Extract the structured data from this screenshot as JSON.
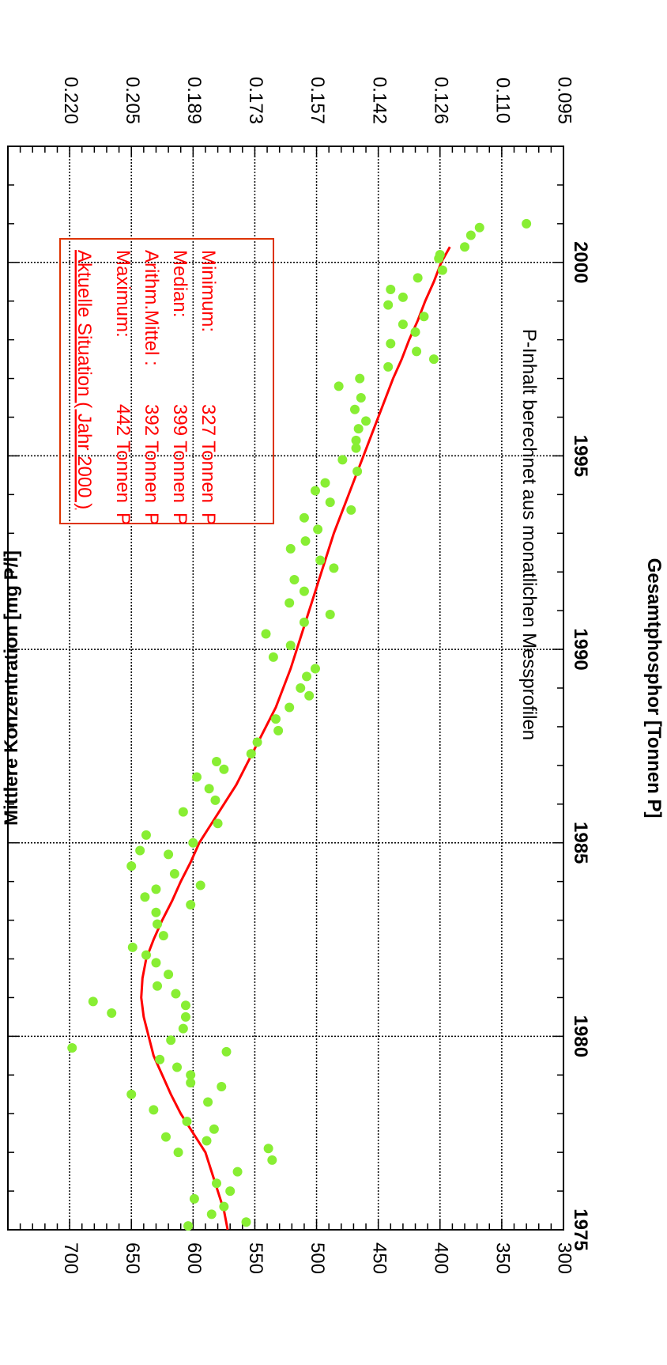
{
  "chart_data": {
    "type": "scatter",
    "xlabel": "",
    "ylabel": "Gesamtphosphor [Tonnen P]",
    "ylabel_right": "Mittlere Konzentration [mg P/l]",
    "annotation": "P-Inhalt berechnet aus monatlichen Messprofilen",
    "x_range": [
      1975,
      2003
    ],
    "y_range": [
      300,
      750
    ],
    "grid": true,
    "x_ticks": [
      "1975",
      "1980",
      "1985",
      "1990",
      "1995",
      "2000"
    ],
    "y_ticks": [
      "300",
      "350",
      "400",
      "450",
      "500",
      "550",
      "600",
      "650",
      "700"
    ],
    "y_right_ticks": [
      "0.095",
      "0.110",
      "0.126",
      "0.142",
      "0.157",
      "0.173",
      "0.189",
      "0.205",
      "0.220"
    ],
    "series": [
      {
        "color": "#88ee33",
        "values": [
          [
            1975.1,
            604
          ],
          [
            1975.2,
            557
          ],
          [
            1975.4,
            585
          ],
          [
            1975.6,
            575
          ],
          [
            1975.8,
            599
          ],
          [
            1976.0,
            570
          ],
          [
            1976.2,
            581
          ],
          [
            1976.5,
            564
          ],
          [
            1976.8,
            536
          ],
          [
            1977.0,
            612
          ],
          [
            1977.1,
            539
          ],
          [
            1977.3,
            589
          ],
          [
            1977.4,
            622
          ],
          [
            1977.6,
            583
          ],
          [
            1977.8,
            605
          ],
          [
            1978.1,
            632
          ],
          [
            1978.3,
            588
          ],
          [
            1978.5,
            650
          ],
          [
            1978.7,
            577
          ],
          [
            1978.8,
            602
          ],
          [
            1979.0,
            602
          ],
          [
            1979.2,
            613
          ],
          [
            1979.4,
            627
          ],
          [
            1979.6,
            573
          ],
          [
            1979.7,
            698
          ],
          [
            1979.9,
            618
          ],
          [
            1980.2,
            608
          ],
          [
            1980.5,
            606
          ],
          [
            1980.6,
            666
          ],
          [
            1980.8,
            606
          ],
          [
            1980.9,
            681
          ],
          [
            1981.1,
            614
          ],
          [
            1981.3,
            629
          ],
          [
            1981.6,
            620
          ],
          [
            1981.9,
            630
          ],
          [
            1982.1,
            638
          ],
          [
            1982.3,
            649
          ],
          [
            1982.6,
            624
          ],
          [
            1982.9,
            629
          ],
          [
            1983.2,
            630
          ],
          [
            1983.4,
            602
          ],
          [
            1983.6,
            639
          ],
          [
            1983.8,
            630
          ],
          [
            1983.9,
            594
          ],
          [
            1984.2,
            615
          ],
          [
            1984.4,
            650
          ],
          [
            1984.7,
            620
          ],
          [
            1984.8,
            643
          ],
          [
            1985.0,
            600
          ],
          [
            1985.2,
            638
          ],
          [
            1985.5,
            580
          ],
          [
            1985.8,
            608
          ],
          [
            1986.1,
            582
          ],
          [
            1986.4,
            587
          ],
          [
            1986.7,
            597
          ],
          [
            1986.9,
            575
          ],
          [
            1987.1,
            581
          ],
          [
            1987.3,
            553
          ],
          [
            1987.6,
            548
          ],
          [
            1987.9,
            531
          ],
          [
            1988.2,
            533
          ],
          [
            1988.5,
            522
          ],
          [
            1988.8,
            506
          ],
          [
            1989.0,
            513
          ],
          [
            1989.3,
            508
          ],
          [
            1989.5,
            501
          ],
          [
            1989.8,
            535
          ],
          [
            1990.1,
            521
          ],
          [
            1990.4,
            541
          ],
          [
            1990.7,
            510
          ],
          [
            1990.9,
            489
          ],
          [
            1991.2,
            522
          ],
          [
            1991.5,
            510
          ],
          [
            1991.8,
            518
          ],
          [
            1992.1,
            486
          ],
          [
            1992.3,
            497
          ],
          [
            1992.6,
            521
          ],
          [
            1992.8,
            509
          ],
          [
            1993.1,
            499
          ],
          [
            1993.4,
            510
          ],
          [
            1993.6,
            472
          ],
          [
            1993.8,
            489
          ],
          [
            1994.1,
            501
          ],
          [
            1994.3,
            493
          ],
          [
            1994.6,
            467
          ],
          [
            1994.9,
            479
          ],
          [
            1995.2,
            468
          ],
          [
            1995.4,
            468
          ],
          [
            1995.7,
            466
          ],
          [
            1995.9,
            460
          ],
          [
            1996.2,
            469
          ],
          [
            1996.5,
            464
          ],
          [
            1996.8,
            482
          ],
          [
            1997.0,
            465
          ],
          [
            1997.3,
            442
          ],
          [
            1997.5,
            405
          ],
          [
            1997.7,
            419
          ],
          [
            1997.9,
            440
          ],
          [
            1998.2,
            420
          ],
          [
            1998.4,
            430
          ],
          [
            1998.6,
            413
          ],
          [
            1998.9,
            442
          ],
          [
            1999.1,
            430
          ],
          [
            1999.3,
            440
          ],
          [
            1999.6,
            418
          ],
          [
            1999.8,
            398
          ],
          [
            2000.1,
            401
          ],
          [
            2000.2,
            400
          ],
          [
            2000.4,
            380
          ],
          [
            2000.7,
            375
          ],
          [
            2000.9,
            368
          ],
          [
            2001.0,
            330
          ]
        ]
      },
      {
        "color": "#ff0000",
        "type": "line",
        "values": [
          [
            1975.0,
            572
          ],
          [
            1975.5,
            575
          ],
          [
            1976.0,
            580
          ],
          [
            1976.5,
            585
          ],
          [
            1977.0,
            590
          ],
          [
            1977.5,
            600
          ],
          [
            1978.0,
            610
          ],
          [
            1978.5,
            618
          ],
          [
            1979.0,
            625
          ],
          [
            1979.5,
            632
          ],
          [
            1980.0,
            636
          ],
          [
            1980.5,
            640
          ],
          [
            1981.0,
            642
          ],
          [
            1981.5,
            641
          ],
          [
            1982.0,
            638
          ],
          [
            1982.5,
            632
          ],
          [
            1983.0,
            625
          ],
          [
            1983.5,
            617
          ],
          [
            1984.0,
            610
          ],
          [
            1984.5,
            602
          ],
          [
            1985.0,
            595
          ],
          [
            1985.5,
            585
          ],
          [
            1986.0,
            575
          ],
          [
            1986.5,
            565
          ],
          [
            1987.0,
            557
          ],
          [
            1987.5,
            549
          ],
          [
            1988.0,
            541
          ],
          [
            1988.5,
            533
          ],
          [
            1989.0,
            527
          ],
          [
            1989.5,
            521
          ],
          [
            1990.0,
            516
          ],
          [
            1990.5,
            511
          ],
          [
            1991.0,
            506
          ],
          [
            1991.5,
            501
          ],
          [
            1992.0,
            496
          ],
          [
            1992.5,
            491
          ],
          [
            1993.0,
            486
          ],
          [
            1993.5,
            480
          ],
          [
            1994.0,
            474
          ],
          [
            1994.5,
            468
          ],
          [
            1995.0,
            462
          ],
          [
            1995.5,
            456
          ],
          [
            1996.0,
            450
          ],
          [
            1996.5,
            444
          ],
          [
            1997.0,
            438
          ],
          [
            1997.5,
            431
          ],
          [
            1998.0,
            425
          ],
          [
            1998.5,
            418
          ],
          [
            1999.0,
            412
          ],
          [
            1999.5,
            405
          ],
          [
            2000.0,
            399
          ],
          [
            2000.4,
            392
          ]
        ]
      }
    ]
  },
  "legend_box": {
    "title": "Aktuelle Situation ( Jahr 2000 )",
    "rows": [
      {
        "label": "Maximum:",
        "value": "442 Tonnen",
        "unit": "P"
      },
      {
        "label": "Arithm.Mittel :",
        "value": "392 Tonnen",
        "unit": "P"
      },
      {
        "label": "Median:",
        "value": "399 Tonnen",
        "unit": "P"
      },
      {
        "label": "Minimum:",
        "value": "327 Tonnen",
        "unit": "P"
      }
    ]
  },
  "colors": {
    "points": "#88ee33",
    "trend": "#ff0000",
    "box_border": "#dd3300"
  }
}
